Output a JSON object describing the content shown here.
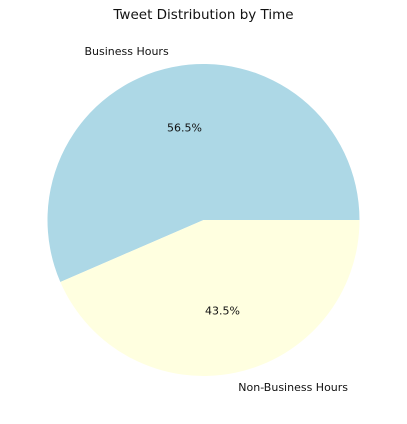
{
  "chart_data": {
    "type": "pie",
    "title": "Tweet Distribution by Time",
    "slices": [
      {
        "label": "Business Hours",
        "value": 56.5,
        "pct_label": "56.5%",
        "color": "#add8e6"
      },
      {
        "label": "Non-Business Hours",
        "value": 43.5,
        "pct_label": "43.5%",
        "color": "#ffffe0"
      }
    ],
    "legend": "none"
  }
}
